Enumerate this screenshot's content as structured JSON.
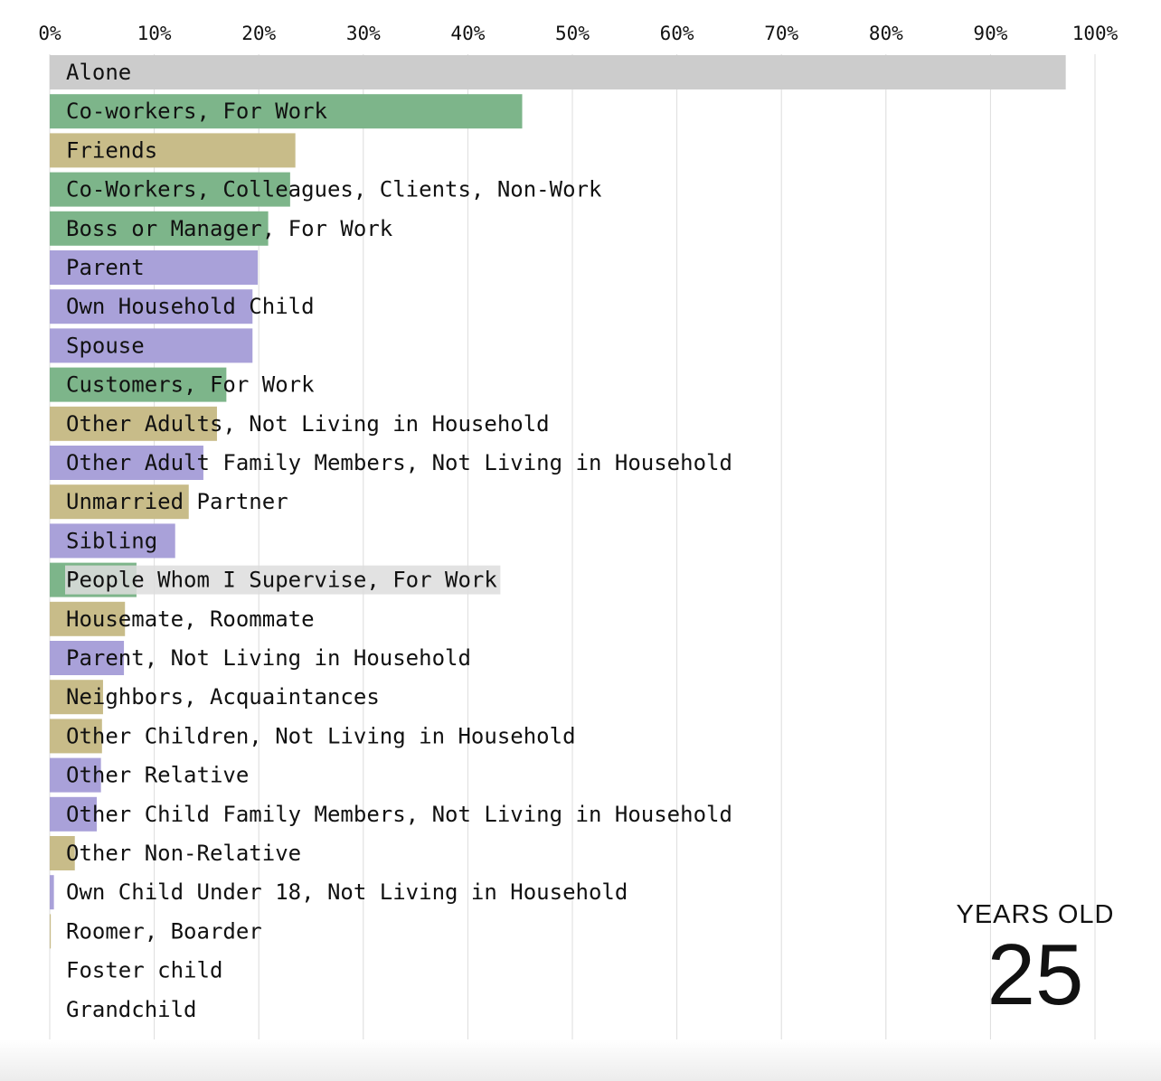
{
  "chart_data": {
    "type": "bar",
    "orientation": "horizontal",
    "xlim": [
      0,
      100
    ],
    "x_ticks": [
      "0%",
      "10%",
      "20%",
      "30%",
      "40%",
      "50%",
      "60%",
      "70%",
      "80%",
      "90%",
      "100%"
    ],
    "grid": true,
    "legend": "none",
    "colors": {
      "none": "#cccccc",
      "work": "#7db58a",
      "friends": "#c8bc89",
      "family": "#a9a1d9"
    },
    "series": [
      {
        "label": "Alone",
        "value": 97.2,
        "group": "none"
      },
      {
        "label": "Co-workers, For Work",
        "value": 45.2,
        "group": "work"
      },
      {
        "label": "Friends",
        "value": 23.5,
        "group": "friends"
      },
      {
        "label": "Co-Workers, Colleagues, Clients, Non-Work",
        "value": 23.0,
        "group": "work"
      },
      {
        "label": "Boss or Manager, For Work",
        "value": 20.9,
        "group": "work"
      },
      {
        "label": "Parent",
        "value": 19.9,
        "group": "family"
      },
      {
        "label": "Own Household Child",
        "value": 19.4,
        "group": "family"
      },
      {
        "label": "Spouse",
        "value": 19.4,
        "group": "family"
      },
      {
        "label": "Customers, For Work",
        "value": 16.9,
        "group": "work"
      },
      {
        "label": "Other Adults, Not Living in Household",
        "value": 16.0,
        "group": "friends"
      },
      {
        "label": "Other Adult Family Members, Not Living in Household",
        "value": 14.7,
        "group": "family"
      },
      {
        "label": "Unmarried Partner",
        "value": 13.3,
        "group": "friends"
      },
      {
        "label": "Sibling",
        "value": 12.0,
        "group": "family"
      },
      {
        "label": "People Whom I Supervise, For Work",
        "value": 8.3,
        "group": "work"
      },
      {
        "label": "Housemate, Roommate",
        "value": 7.2,
        "group": "friends"
      },
      {
        "label": "Parent, Not Living in Household",
        "value": 7.1,
        "group": "family"
      },
      {
        "label": "Neighbors, Acquaintances",
        "value": 5.1,
        "group": "friends"
      },
      {
        "label": "Other Children, Not Living in Household",
        "value": 5.0,
        "group": "friends"
      },
      {
        "label": "Other Relative",
        "value": 4.9,
        "group": "family"
      },
      {
        "label": "Other Child Family Members, Not Living in Household",
        "value": 4.5,
        "group": "family"
      },
      {
        "label": "Other Non-Relative",
        "value": 2.4,
        "group": "friends"
      },
      {
        "label": "Own Child Under 18, Not Living in Household",
        "value": 0.4,
        "group": "family"
      },
      {
        "label": "Roomer, Boarder",
        "value": 0.1,
        "group": "friends"
      },
      {
        "label": "Foster child",
        "value": 0.0,
        "group": "family"
      },
      {
        "label": "Grandchild",
        "value": 0.0,
        "group": "family"
      }
    ],
    "highlighted_label": "People Whom I Supervise, For Work",
    "highlight_color": "#dddddd"
  },
  "age": {
    "caption": "YEARS OLD",
    "value": "25"
  }
}
